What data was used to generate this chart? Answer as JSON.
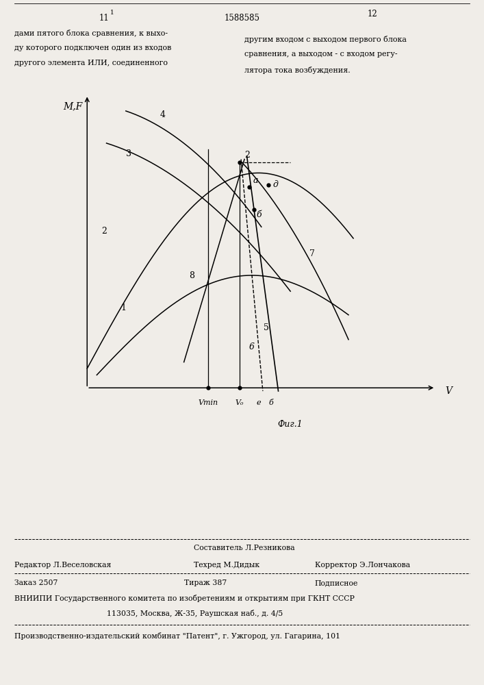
{
  "bg_color": "#f0ede8",
  "title_center": "1588585",
  "page_left": "11",
  "superscript_left": "1",
  "page_right": "12",
  "text_left_line1": "дами пятого блока сравнения, к выхо-",
  "text_left_line2": "ду которого подключен один из входов",
  "text_left_line3": "другого элемента ИЛИ, соединенного",
  "text_right_line1": "другим входом с выходом первого блока",
  "text_right_line2": "сравнения, а выходом - с входом регу-",
  "text_right_line3": "лятора тока возбуждения.",
  "fig_label": "Фиг.1",
  "ylabel": "M,F",
  "xlabel": "V",
  "editor": "Редактор Л.Веселовская",
  "compiler": "Составитель Л.Резникова",
  "techred": "Техред М.Дидык",
  "corrector": "Корректор Э.Лончакова",
  "zakaz": "Заказ 2507",
  "tirazh": "Тираж 387",
  "podpisnoe": "Подписное",
  "vnipi_line1": "ВНИИПИ Государственного комитета по изобретениям и открытиям при ГКНТ СССР",
  "vnipi_line2": "113035, Москва, Ж-35, Раушская наб., д. 4/5",
  "patent_line": "Производственно-издательский комбинат \"Патент\", г. Ужгород, ул. Гагарина, 101"
}
